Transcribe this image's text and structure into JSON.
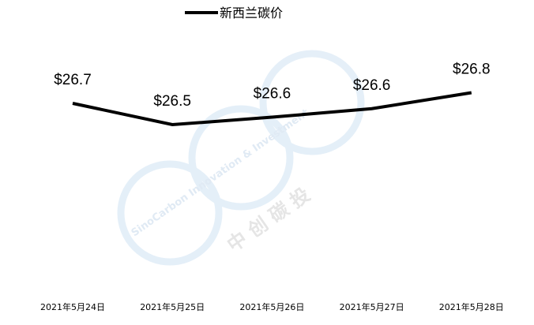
{
  "chart_data": {
    "type": "line",
    "title": "",
    "xlabel": "",
    "ylabel": "",
    "categories": [
      "2021年5月24日",
      "2021年5月25日",
      "2021年5月26日",
      "2021年5月27日",
      "2021年5月28日"
    ],
    "series": [
      {
        "name": "新西兰碳价",
        "values": [
          26.7,
          26.5,
          26.57,
          26.65,
          26.8
        ],
        "data_labels": [
          "$26.7",
          "$26.5",
          "$26.6",
          "$26.6",
          "$26.8"
        ],
        "color": "#000000"
      }
    ],
    "legend": "top",
    "grid": false,
    "y_axis_visible": false
  },
  "watermark": {
    "text": "SinoCarbon Innovation & Investment",
    "chinese": "中创碳投",
    "color": "#d6e6f5"
  }
}
